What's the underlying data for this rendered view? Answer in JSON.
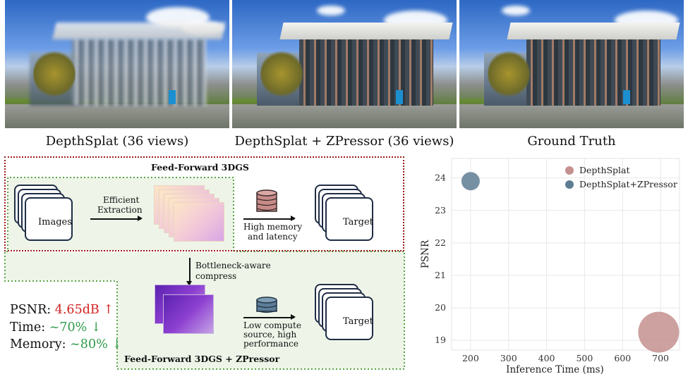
{
  "photos": [
    {
      "caption": "DepthSplat (36 views)",
      "style": "blurry"
    },
    {
      "caption": "DepthSplat + ZPressor (36 views)",
      "style": "sharp"
    },
    {
      "caption": "Ground Truth",
      "style": "sharp"
    }
  ],
  "diagram": {
    "top_title": "Feed-Forward 3DGS",
    "bottom_title": "Feed-Forward 3DGS + ZPressor",
    "input_label": "Images",
    "extract_label_1": "Efficient",
    "extract_label_2": "Extraction",
    "target_label_top": "Target",
    "target_label_bottom": "Target",
    "cost_top_1": "High memory",
    "cost_top_2": "and latency",
    "compress_1": "Bottleneck-aware",
    "compress_2": "compress",
    "cost_bottom_1": "Low compute",
    "cost_bottom_2": "source, high",
    "cost_bottom_3": "performance",
    "colors": {
      "red_border": "#9b1a1a",
      "green_border": "#5aa446",
      "green_fill": "#eef5e8"
    }
  },
  "metrics": {
    "psnr_label": "PSNR:",
    "psnr_value": "4.65dB",
    "psnr_arrow": "↑",
    "time_label": "Time:",
    "time_value": "~70%",
    "time_arrow": "↓",
    "memory_label": "Memory:",
    "memory_value": "~80%",
    "memory_arrow": "↓",
    "colors": {
      "up": "#d11f1f",
      "down": "#2e9a4a"
    }
  },
  "chart_data": {
    "type": "scatter",
    "xlabel": "Inference Time (ms)",
    "ylabel": "PSNR",
    "xlim": [
      150,
      750
    ],
    "ylim": [
      18.7,
      24.6
    ],
    "xticks": [
      200,
      300,
      400,
      500,
      600,
      700
    ],
    "yticks": [
      19,
      20,
      21,
      22,
      23,
      24
    ],
    "grid": true,
    "legend_position": "top-right",
    "series": [
      {
        "name": "DepthSplat",
        "x": 695,
        "y": 19.25,
        "size": "large",
        "color": "#c4908f"
      },
      {
        "name": "DepthSplat+ZPressor",
        "x": 200,
        "y": 23.9,
        "size": "small",
        "color": "#5e7d93"
      }
    ]
  }
}
